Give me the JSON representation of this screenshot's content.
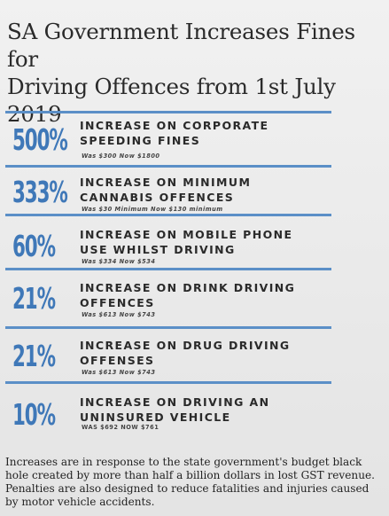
{
  "title_line1": "SA Government Increases Fines for",
  "title_line2": "Driving Offences from 1st July 2019",
  "accent_color": "#3f78b8",
  "divider_color": "#5b8fc7",
  "items": [
    {
      "percent": "500%",
      "line1": "INCREASE ON CORPORATE",
      "line2": "SPEEDING FINES",
      "detail": "Was $300 Now $1800"
    },
    {
      "percent": "333%",
      "line1": "INCREASE ON MINIMUM",
      "line2": "CANNABIS OFFENCES",
      "detail": "Was $30 Minimum Now $130 minimum"
    },
    {
      "percent": "60%",
      "line1": "INCREASE ON MOBILE PHONE",
      "line2": "USE WHILST DRIVING",
      "detail": "Was $334 Now $534"
    },
    {
      "percent": "21%",
      "line1": "INCREASE ON DRINK DRIVING",
      "line2": "OFFENCES",
      "detail": "Was $613 Now $743"
    },
    {
      "percent": "21%",
      "line1": "INCREASE ON DRUG DRIVING",
      "line2": "OFFENSES",
      "detail": "Was $613 Now $743"
    },
    {
      "percent": "10%",
      "line1": "INCREASE ON DRIVING AN",
      "line2": "UNINSURED VEHICLE",
      "detail": "WAS $692 NOW $761"
    }
  ],
  "footer": "Increases are in response to the state government's budget black hole created by more than half a billion dollars in lost GST revenue. Penalties are also designed to reduce fatalities and injuries caused by motor vehicle accidents."
}
